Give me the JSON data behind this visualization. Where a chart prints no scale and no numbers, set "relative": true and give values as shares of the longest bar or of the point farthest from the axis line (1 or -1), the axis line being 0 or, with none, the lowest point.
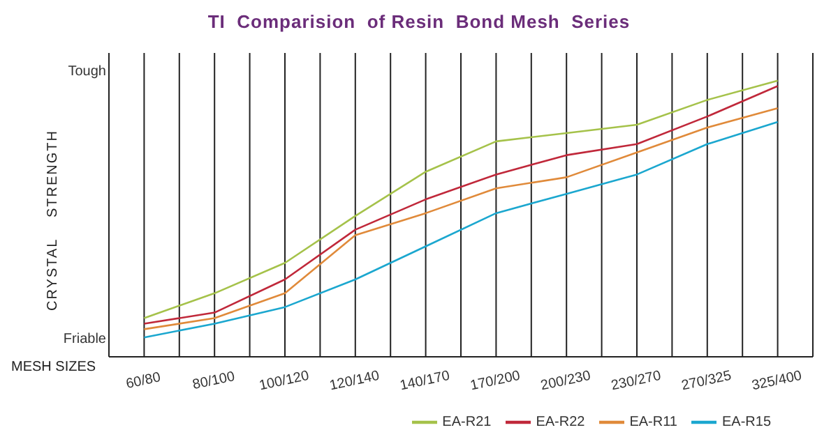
{
  "chart_data": {
    "type": "line",
    "title": "TI  Comparision  of Resin  Bond Mesh  Series",
    "xlabel": "MESH SIZES",
    "ylabel": "CRYSTAL    STRENGTH",
    "annotations": [
      "Tough",
      "Friable"
    ],
    "categories": [
      "60/80",
      "80/100",
      "100/120",
      "120/140",
      "140/170",
      "170/200",
      "200/230",
      "230/270",
      "270/325",
      "325/400"
    ],
    "series": [
      {
        "name": "EA-R21",
        "color": "#a5c24a",
        "values": [
          0.14,
          0.23,
          0.34,
          0.51,
          0.67,
          0.78,
          0.81,
          0.84,
          0.93,
          1
        ]
      },
      {
        "name": "EA-R22",
        "color": "#c0283a",
        "values": [
          0.12,
          0.16,
          0.28,
          0.46,
          0.57,
          0.66,
          0.73,
          0.77,
          0.87,
          0.98
        ]
      },
      {
        "name": "EA-R11",
        "color": "#e08a3a",
        "values": [
          0.1,
          0.14,
          0.23,
          0.44,
          0.52,
          0.61,
          0.65,
          0.74,
          0.83,
          0.9
        ]
      },
      {
        "name": "EA-R15",
        "color": "#1ba7cf",
        "values": [
          0.07,
          0.12,
          0.18,
          0.28,
          0.4,
          0.52,
          0.59,
          0.66,
          0.77,
          0.85
        ]
      }
    ],
    "relative": true,
    "grid": "x",
    "legend": "bottom right",
    "marker": "none",
    "line_style": "solid"
  }
}
